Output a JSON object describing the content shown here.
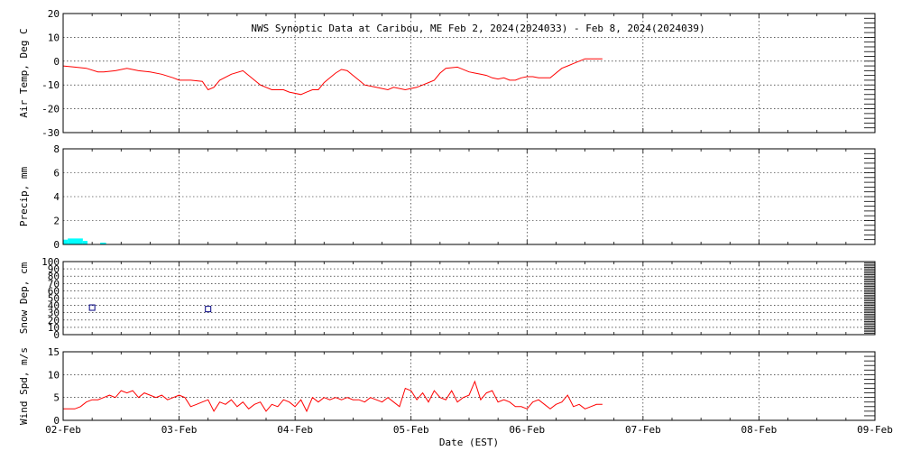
{
  "title": "NWS Synoptic Data at Caribou, ME   Feb  2, 2024(2024033) - Feb  8, 2024(2024039)",
  "xlabel": "Date (EST)",
  "x_tick_labels": [
    "02-Feb",
    "03-Feb",
    "04-Feb",
    "05-Feb",
    "06-Feb",
    "07-Feb",
    "08-Feb",
    "09-Feb"
  ],
  "chart_data": [
    {
      "type": "line",
      "ylabel": "Air Temp, Deg C",
      "x_unit": "days since 02-Feb 00:00 EST",
      "ylim": [
        -30,
        20
      ],
      "yticks": [
        -30,
        -20,
        -10,
        0,
        10,
        20
      ],
      "grid": true,
      "color": "#ff0000",
      "x": [
        0,
        0.1,
        0.2,
        0.3,
        0.35,
        0.45,
        0.55,
        0.65,
        0.75,
        0.85,
        0.95,
        1.0,
        1.05,
        1.1,
        1.2,
        1.25,
        1.3,
        1.35,
        1.45,
        1.55,
        1.6,
        1.65,
        1.7,
        1.8,
        1.9,
        1.95,
        2.05,
        2.1,
        2.15,
        2.2,
        2.25,
        2.3,
        2.35,
        2.4,
        2.45,
        2.5,
        2.55,
        2.6,
        2.7,
        2.8,
        2.85,
        2.95,
        3.05,
        3.1,
        3.15,
        3.2,
        3.25,
        3.3,
        3.4,
        3.5,
        3.55,
        3.6,
        3.65,
        3.7,
        3.75,
        3.8,
        3.85,
        3.9,
        3.95,
        4.0,
        4.05,
        4.1,
        4.15,
        4.2,
        4.3,
        4.35,
        4.4,
        4.45,
        4.5,
        4.55,
        4.6,
        4.65
      ],
      "values": [
        -2,
        -2.5,
        -3,
        -4.5,
        -4.5,
        -4,
        -3,
        -4,
        -4.5,
        -5.5,
        -7,
        -8,
        -8,
        -8,
        -8.5,
        -12,
        -11,
        -8,
        -5.5,
        -4,
        -6,
        -8,
        -10,
        -12,
        -12,
        -13,
        -14,
        -13,
        -12,
        -12,
        -9,
        -7,
        -5,
        -3.5,
        -4,
        -6,
        -8,
        -10,
        -11,
        -12,
        -11,
        -12,
        -11,
        -10,
        -9,
        -8,
        -5,
        -3,
        -2.5,
        -4.5,
        -5,
        -5.5,
        -6,
        -7,
        -7.5,
        -7,
        -8,
        -8,
        -7,
        -6.5,
        -6.5,
        -7,
        -7,
        -7,
        -3,
        -2,
        -1,
        0,
        1,
        1,
        1,
        1
      ]
    },
    {
      "type": "bar",
      "ylabel": "Precip, mm",
      "x_unit": "days since 02-Feb 00:00 EST",
      "ylim": [
        0,
        8
      ],
      "yticks": [
        0,
        2,
        4,
        6,
        8
      ],
      "grid": true,
      "color": "#00ffff",
      "bars": [
        {
          "x0": 0.0,
          "x1": 0.04,
          "value": 0.4
        },
        {
          "x0": 0.04,
          "x1": 0.17,
          "value": 0.5
        },
        {
          "x0": 0.17,
          "x1": 0.21,
          "value": 0.3
        },
        {
          "x0": 0.32,
          "x1": 0.37,
          "value": 0.15
        }
      ]
    },
    {
      "type": "scatter",
      "ylabel": "Snow Dep, cm",
      "x_unit": "days since 02-Feb 00:00 EST",
      "ylim": [
        0,
        100
      ],
      "yticks": [
        0,
        10,
        20,
        30,
        40,
        50,
        60,
        70,
        80,
        90,
        100
      ],
      "grid": true,
      "color": "#000080",
      "marker": "square",
      "x": [
        0.25,
        1.25
      ],
      "values": [
        37,
        35
      ]
    },
    {
      "type": "line",
      "ylabel": "Wind Spd, m/s",
      "x_unit": "days since 02-Feb 00:00 EST",
      "ylim": [
        0,
        15
      ],
      "yticks": [
        0,
        5,
        10,
        15
      ],
      "grid": true,
      "color": "#ff0000",
      "x": [
        0,
        0.05,
        0.1,
        0.15,
        0.2,
        0.25,
        0.3,
        0.35,
        0.4,
        0.45,
        0.5,
        0.55,
        0.6,
        0.65,
        0.7,
        0.75,
        0.8,
        0.85,
        0.9,
        0.95,
        1.0,
        1.05,
        1.1,
        1.15,
        1.2,
        1.25,
        1.3,
        1.35,
        1.4,
        1.45,
        1.5,
        1.55,
        1.6,
        1.65,
        1.7,
        1.75,
        1.8,
        1.85,
        1.9,
        1.95,
        2.0,
        2.05,
        2.1,
        2.15,
        2.2,
        2.25,
        2.3,
        2.35,
        2.4,
        2.45,
        2.5,
        2.55,
        2.6,
        2.65,
        2.7,
        2.75,
        2.8,
        2.85,
        2.9,
        2.95,
        3.0,
        3.05,
        3.1,
        3.15,
        3.2,
        3.25,
        3.3,
        3.35,
        3.4,
        3.45,
        3.5,
        3.55,
        3.6,
        3.65,
        3.7,
        3.75,
        3.8,
        3.85,
        3.9,
        3.95,
        4.0,
        4.05,
        4.1,
        4.15,
        4.2,
        4.25,
        4.3,
        4.35,
        4.4,
        4.45,
        4.5,
        4.55,
        4.6,
        4.65
      ],
      "values": [
        2.5,
        2.5,
        2.5,
        3,
        4,
        4.5,
        4.5,
        5,
        5.5,
        5,
        6.5,
        6,
        6.5,
        5,
        6,
        5.5,
        5,
        5.5,
        4.5,
        5,
        5.5,
        5,
        3,
        3.5,
        4,
        4.5,
        2,
        4,
        3.5,
        4.5,
        3,
        4,
        2.5,
        3.5,
        4,
        2,
        3.5,
        3,
        4.5,
        4,
        3,
        4.5,
        2,
        5,
        4,
        5,
        4.5,
        5,
        4.5,
        5,
        4.5,
        4.5,
        4,
        5,
        4.5,
        4,
        5,
        4,
        3,
        7,
        6.5,
        4.5,
        6,
        4,
        6.5,
        5,
        4.5,
        6.5,
        4,
        5,
        5.5,
        8.5,
        4.5,
        6,
        6.5,
        4,
        4.5,
        4,
        3,
        3,
        2.5,
        4,
        4.5,
        3.5,
        2.5,
        3.5,
        4,
        5.5,
        3,
        3.5,
        2.5,
        3,
        3.5,
        3.5
      ]
    }
  ]
}
